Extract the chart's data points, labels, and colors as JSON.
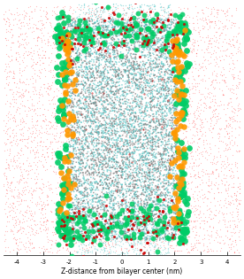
{
  "title": "",
  "xlabel": "Z-distance from bilayer center (nm)",
  "xlim": [
    -4.5,
    4.5
  ],
  "ylim": [
    0,
    1
  ],
  "xticks": [
    -4,
    -3,
    -2,
    -1,
    0,
    1,
    2,
    3,
    4
  ],
  "fig_width": 2.76,
  "fig_height": 3.15,
  "dpi": 100,
  "bg_color": "#ffffff",
  "water_color": "#ff4444",
  "water_alpha": 0.35,
  "lipid_tail_color_1": "#5bc8c8",
  "lipid_tail_color_2": "#7a7a7a",
  "dopc_head_color": "#00cc66",
  "dope_head_color": "#ff9900",
  "head_red_color": "#cc0000"
}
